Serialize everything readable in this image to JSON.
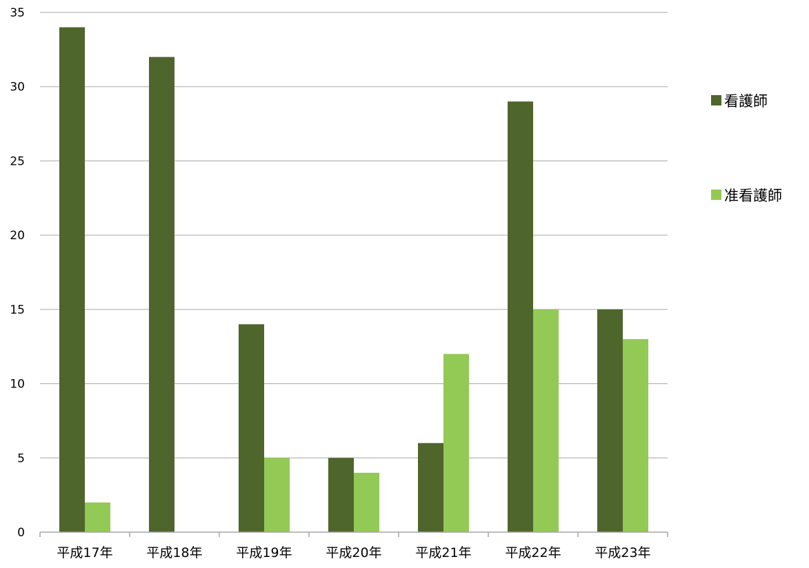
{
  "chart_data": {
    "type": "bar",
    "title": "",
    "xlabel": "",
    "ylabel": "",
    "categories": [
      "平成17年",
      "平成18年",
      "平成19年",
      "平成20年",
      "平成21年",
      "平成22年",
      "平成23年"
    ],
    "series": [
      {
        "name": "看護師",
        "color": "#4e652c",
        "values": [
          34,
          32,
          14,
          5,
          6,
          29,
          15
        ]
      },
      {
        "name": "准看護師",
        "color": "#93c955",
        "values": [
          2,
          0,
          5,
          4,
          12,
          15,
          13
        ]
      }
    ],
    "ylim": [
      0,
      35
    ],
    "yticks": [
      0,
      5,
      10,
      15,
      20,
      25,
      30,
      35
    ],
    "grid": true,
    "legend": "right",
    "colors": {
      "gridline": "#a6a6a6",
      "axis": "#a6a6a6"
    }
  }
}
